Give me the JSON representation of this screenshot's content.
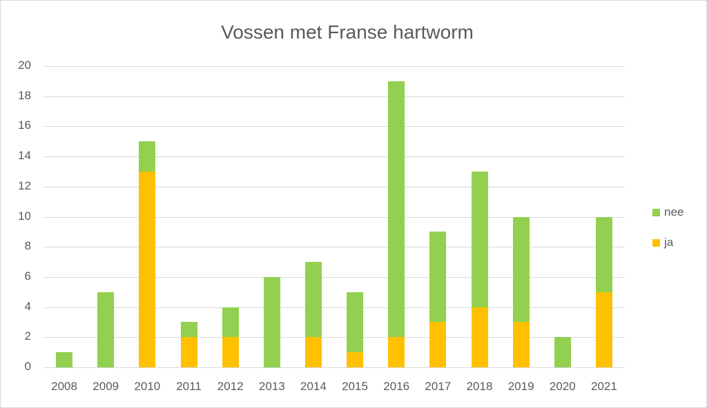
{
  "chart_data": {
    "type": "bar",
    "stacked": true,
    "title": "Vossen met Franse hartworm",
    "xlabel": "",
    "ylabel": "",
    "ylim": [
      0,
      20
    ],
    "yticks": [
      0,
      2,
      4,
      6,
      8,
      10,
      12,
      14,
      16,
      18,
      20
    ],
    "grid": true,
    "legend_position": "right",
    "categories": [
      "2008",
      "2009",
      "2010",
      "2011",
      "2012",
      "2013",
      "2014",
      "2015",
      "2016",
      "2017",
      "2018",
      "2019",
      "2020",
      "2021"
    ],
    "series": [
      {
        "name": "ja",
        "color": "#FFC000",
        "values": [
          0,
          0,
          13,
          2,
          2,
          0,
          2,
          1,
          2,
          3,
          4,
          3,
          0,
          5
        ]
      },
      {
        "name": "nee",
        "color": "#92D050",
        "values": [
          1,
          5,
          2,
          1,
          2,
          6,
          5,
          4,
          17,
          6,
          9,
          7,
          2,
          5
        ]
      }
    ],
    "totals": [
      1,
      5,
      15,
      3,
      4,
      6,
      7,
      5,
      19,
      9,
      13,
      10,
      2,
      10
    ]
  },
  "legend": {
    "items": [
      {
        "label": "nee",
        "color": "#92D050"
      },
      {
        "label": "ja",
        "color": "#FFC000"
      }
    ]
  }
}
